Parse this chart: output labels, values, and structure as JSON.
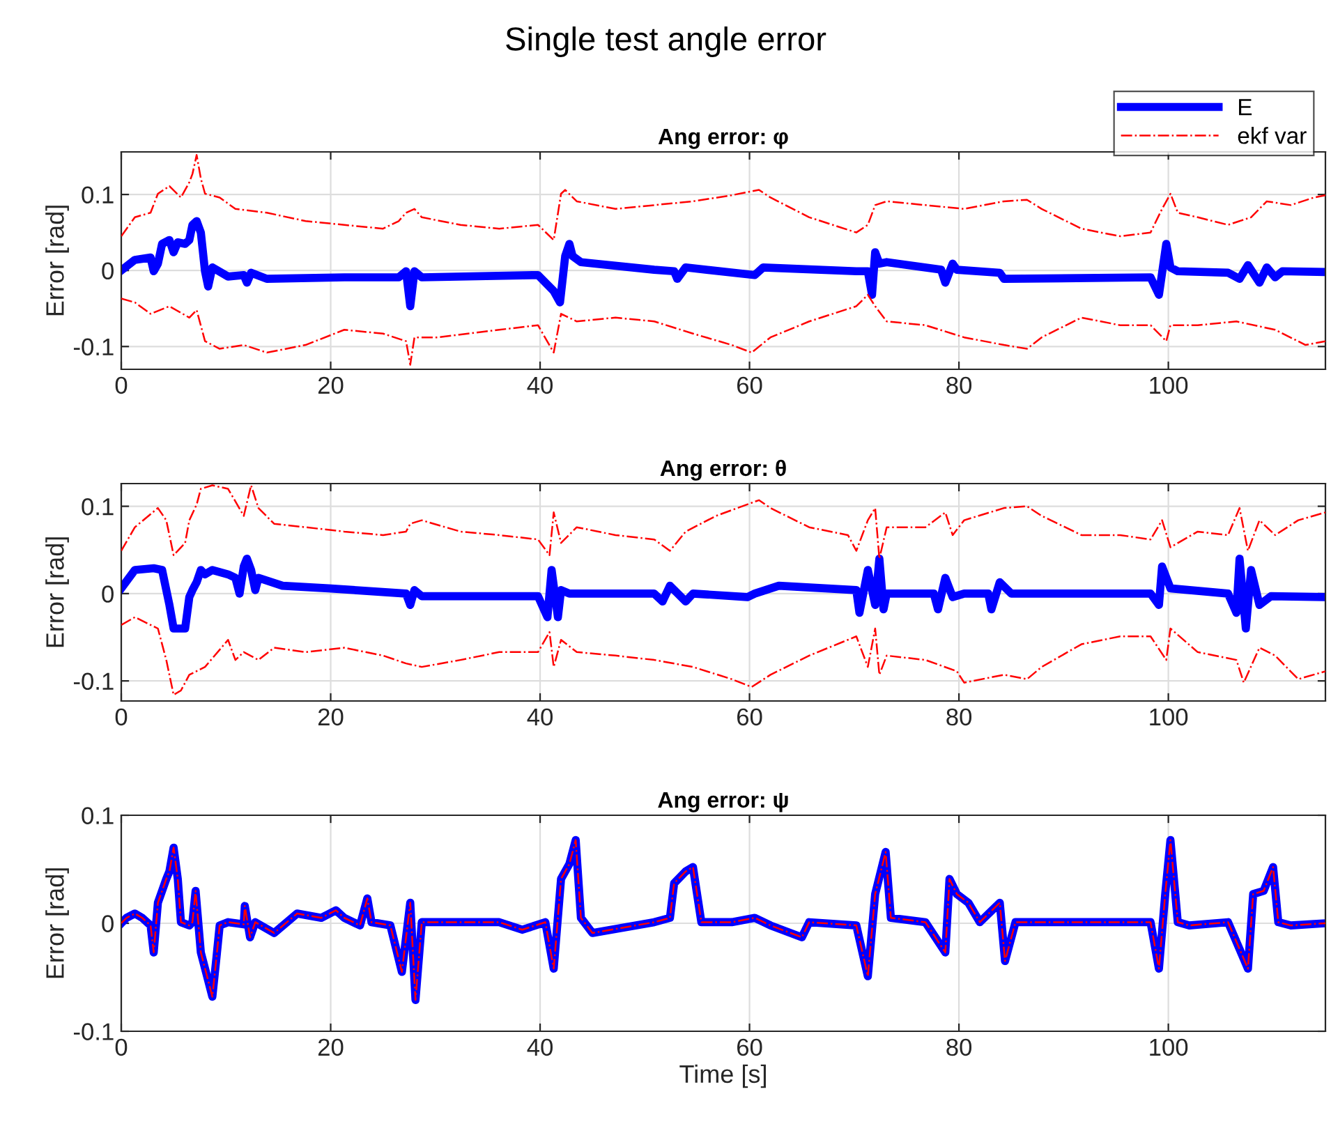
{
  "chart_data": [
    {
      "type": "line",
      "title": "Single test angle error",
      "subtitle": "Ang error: φ",
      "ylabel": "Error [rad]",
      "xlim": [
        0,
        115
      ],
      "xticks": [
        0,
        20,
        40,
        60,
        80,
        100
      ],
      "ylim": [
        -0.13,
        0.156
      ],
      "yticks": [
        -0.1,
        0,
        0.1
      ],
      "grid": true,
      "legend": "top right",
      "series": [
        {
          "name": "E",
          "color": "#0000ff",
          "line_style": "solid",
          "x": [
            0,
            1.3,
            2.8,
            3.1,
            3.5,
            3.9,
            4.6,
            5.0,
            5.4,
            6.1,
            6.5,
            6.8,
            7.2,
            7.6,
            8.0,
            8.3,
            8.7,
            10.2,
            11.7,
            12.0,
            12.4,
            13.9,
            21.3,
            26.5,
            27.2,
            27.6,
            28.0,
            28.7,
            39.8,
            41.3,
            41.9,
            42.4,
            42.8,
            43.1,
            43.9,
            50.9,
            52.8,
            53.1,
            53.9,
            60.5,
            61.3,
            70.2,
            71.3,
            71.7,
            72.0,
            72.4,
            73.1,
            78.3,
            78.7,
            79.4,
            79.8,
            83.9,
            84.3,
            98.3,
            99.1,
            99.8,
            100.2,
            100.9,
            105.7,
            106.8,
            107.6,
            108.7,
            109.4,
            110.2,
            110.9,
            115
          ],
          "values": [
            0,
            0.014,
            0.017,
            -0.001,
            0.009,
            0.035,
            0.04,
            0.024,
            0.037,
            0.035,
            0.04,
            0.06,
            0.065,
            0.05,
            -0.001,
            -0.021,
            0.004,
            -0.008,
            -0.006,
            -0.016,
            -0.003,
            -0.011,
            -0.009,
            -0.009,
            -0.001,
            -0.047,
            -0.001,
            -0.009,
            -0.006,
            -0.027,
            -0.042,
            0.019,
            0.035,
            0.019,
            0.011,
            0.001,
            -0.001,
            -0.011,
            0.004,
            -0.006,
            0.004,
            -0.001,
            -0.001,
            -0.032,
            0.024,
            0.009,
            0.011,
            0.001,
            -0.016,
            0.009,
            0.001,
            -0.003,
            -0.011,
            -0.009,
            -0.032,
            0.035,
            0.004,
            -0.001,
            -0.003,
            -0.011,
            0.007,
            -0.016,
            0.004,
            -0.009,
            -0.001,
            -0.002
          ]
        },
        {
          "name": "ekf var",
          "color": "#ff0000",
          "line_style": "dashdot",
          "x": [
            0,
            1.3,
            2.8,
            3.5,
            4.6,
            5.7,
            6.5,
            6.8,
            7.2,
            7.6,
            8.0,
            9.4,
            10.9,
            13.9,
            17.6,
            21.3,
            25.0,
            26.5,
            27.2,
            28.0,
            28.7,
            32.4,
            36.1,
            39.8,
            41.3,
            42.0,
            42.4,
            43.5,
            47.2,
            50.9,
            54.6,
            58.3,
            60.9,
            62.0,
            65.7,
            70.2,
            71.3,
            72.0,
            73.1,
            76.8,
            80.5,
            84.3,
            86.5,
            87.9,
            91.7,
            95.4,
            98.3,
            99.4,
            100.2,
            100.9,
            102.8,
            105.7,
            107.9,
            109.4,
            111.7,
            113.9,
            115
          ],
          "values": [
            0.045,
            0.07,
            0.076,
            0.101,
            0.111,
            0.096,
            0.116,
            0.127,
            0.152,
            0.121,
            0.101,
            0.096,
            0.081,
            0.076,
            0.065,
            0.06,
            0.055,
            0.065,
            0.076,
            0.081,
            0.07,
            0.06,
            0.055,
            0.06,
            0.04,
            0.101,
            0.106,
            0.091,
            0.081,
            0.086,
            0.091,
            0.099,
            0.106,
            0.096,
            0.07,
            0.05,
            0.06,
            0.086,
            0.091,
            0.086,
            0.081,
            0.091,
            0.093,
            0.081,
            0.055,
            0.045,
            0.05,
            0.081,
            0.101,
            0.076,
            0.07,
            0.06,
            0.07,
            0.091,
            0.086,
            0.096,
            0.099
          ]
        },
        {
          "color": "#ff0000",
          "line_style": "dashdot",
          "x": [
            0,
            1.3,
            2.8,
            4.6,
            6.5,
            7.2,
            8.0,
            9.4,
            11.7,
            13.9,
            17.6,
            21.3,
            25.0,
            27.2,
            27.6,
            28.0,
            30.2,
            36.1,
            39.8,
            41.3,
            42.0,
            43.5,
            47.2,
            50.9,
            54.6,
            58.3,
            60.2,
            62.0,
            65.7,
            70.2,
            71.3,
            72.0,
            73.1,
            76.8,
            80.5,
            84.3,
            86.5,
            87.9,
            91.7,
            95.4,
            98.3,
            99.8,
            100.2,
            102.8,
            106.5,
            110.2,
            113.1,
            115
          ],
          "values": [
            -0.037,
            -0.042,
            -0.057,
            -0.047,
            -0.062,
            -0.052,
            -0.093,
            -0.103,
            -0.098,
            -0.108,
            -0.098,
            -0.078,
            -0.083,
            -0.093,
            -0.124,
            -0.088,
            -0.088,
            -0.078,
            -0.072,
            -0.108,
            -0.057,
            -0.067,
            -0.062,
            -0.067,
            -0.083,
            -0.098,
            -0.108,
            -0.088,
            -0.067,
            -0.047,
            -0.032,
            -0.047,
            -0.067,
            -0.072,
            -0.088,
            -0.098,
            -0.103,
            -0.088,
            -0.062,
            -0.072,
            -0.072,
            -0.093,
            -0.072,
            -0.072,
            -0.067,
            -0.078,
            -0.098,
            -0.093
          ]
        }
      ]
    },
    {
      "type": "line",
      "subtitle": "Ang error: θ",
      "ylabel": "Error [rad]",
      "xlim": [
        0,
        115
      ],
      "xticks": [
        0,
        20,
        40,
        60,
        80,
        100
      ],
      "ylim": [
        -0.123,
        0.126
      ],
      "yticks": [
        -0.1,
        0,
        0.1
      ],
      "grid": true,
      "series": [
        {
          "color": "#0000ff",
          "line_style": "solid",
          "x": [
            0,
            1.3,
            3.1,
            3.9,
            4.6,
            5.0,
            6.1,
            6.5,
            6.8,
            7.2,
            7.6,
            8.0,
            8.7,
            10.2,
            10.9,
            11.3,
            11.7,
            12.0,
            12.4,
            12.8,
            13.1,
            15.4,
            19.8,
            27.2,
            27.6,
            28.0,
            28.7,
            39.8,
            40.7,
            41.1,
            41.7,
            42.0,
            42.8,
            50.9,
            51.7,
            52.4,
            53.9,
            54.6,
            59.8,
            60.5,
            62.8,
            70.2,
            70.5,
            71.3,
            72.0,
            72.4,
            72.8,
            73.1,
            77.6,
            78.0,
            78.7,
            79.4,
            80.5,
            82.8,
            83.1,
            83.9,
            85.0,
            98.3,
            99.1,
            99.4,
            100.2,
            105.7,
            106.5,
            106.8,
            107.4,
            107.9,
            108.7,
            109.8,
            115
          ],
          "values": [
            0.006,
            0.027,
            0.029,
            0.027,
            -0.013,
            -0.04,
            -0.04,
            -0.004,
            0.004,
            0.013,
            0.027,
            0.022,
            0.027,
            0.022,
            0.018,
            0,
            0.031,
            0.04,
            0.027,
            0.004,
            0.018,
            0.009,
            0.006,
            0,
            -0.013,
            0.004,
            -0.003,
            -0.003,
            -0.027,
            0.027,
            -0.027,
            0.004,
            0,
            0,
            -0.009,
            0.009,
            -0.009,
            0,
            -0.004,
            0,
            0.009,
            0.004,
            -0.022,
            0.027,
            -0.013,
            0.04,
            -0.018,
            0,
            0,
            -0.018,
            0.018,
            -0.004,
            0,
            0,
            -0.018,
            0.013,
            0,
            0,
            -0.013,
            0.031,
            0.006,
            0,
            -0.022,
            0.04,
            -0.04,
            0.027,
            -0.013,
            -0.003,
            -0.004
          ]
        },
        {
          "color": "#ff0000",
          "line_style": "dashdot",
          "x": [
            0,
            1.3,
            3.5,
            4.3,
            5.0,
            6.1,
            6.5,
            7.2,
            7.6,
            8.7,
            10.2,
            11.7,
            12.4,
            13.1,
            14.6,
            17.6,
            21.3,
            25.0,
            27.2,
            27.6,
            28.7,
            32.4,
            36.1,
            39.8,
            40.9,
            41.3,
            42.0,
            43.5,
            47.2,
            50.9,
            52.4,
            53.9,
            56.8,
            60.9,
            62.0,
            65.7,
            69.4,
            70.2,
            71.3,
            72.0,
            72.4,
            73.1,
            76.8,
            78.7,
            79.4,
            80.5,
            84.3,
            86.5,
            87.9,
            91.7,
            95.4,
            98.3,
            99.4,
            100.2,
            102.8,
            105.7,
            106.8,
            107.6,
            108.7,
            110.2,
            112.4,
            115
          ],
          "values": [
            0.049,
            0.076,
            0.098,
            0.084,
            0.044,
            0.058,
            0.084,
            0.102,
            0.12,
            0.124,
            0.12,
            0.089,
            0.124,
            0.098,
            0.08,
            0.076,
            0.071,
            0.067,
            0.071,
            0.08,
            0.084,
            0.071,
            0.067,
            0.062,
            0.044,
            0.093,
            0.058,
            0.076,
            0.067,
            0.062,
            0.049,
            0.071,
            0.089,
            0.107,
            0.098,
            0.076,
            0.067,
            0.049,
            0.084,
            0.098,
            0.04,
            0.076,
            0.076,
            0.093,
            0.067,
            0.084,
            0.098,
            0.1,
            0.089,
            0.067,
            0.067,
            0.062,
            0.084,
            0.053,
            0.071,
            0.067,
            0.098,
            0.049,
            0.084,
            0.067,
            0.084,
            0.093
          ]
        },
        {
          "color": "#ff0000",
          "line_style": "dashdot",
          "x": [
            0,
            1.3,
            3.5,
            4.3,
            5.0,
            5.7,
            6.5,
            8.0,
            10.2,
            10.9,
            11.7,
            13.1,
            14.6,
            17.6,
            21.3,
            25.0,
            27.2,
            28.7,
            32.4,
            36.1,
            39.8,
            40.9,
            41.3,
            42.0,
            43.5,
            47.2,
            50.9,
            54.6,
            58.3,
            60.2,
            62.0,
            65.7,
            70.2,
            71.3,
            72.0,
            72.4,
            73.1,
            76.8,
            79.8,
            80.5,
            84.3,
            86.5,
            87.9,
            91.7,
            95.4,
            98.3,
            99.8,
            100.2,
            102.8,
            106.5,
            107.2,
            108.7,
            110.2,
            112.4,
            115
          ],
          "values": [
            -0.036,
            -0.027,
            -0.04,
            -0.076,
            -0.116,
            -0.111,
            -0.093,
            -0.084,
            -0.053,
            -0.076,
            -0.067,
            -0.076,
            -0.062,
            -0.067,
            -0.062,
            -0.071,
            -0.08,
            -0.084,
            -0.076,
            -0.067,
            -0.067,
            -0.044,
            -0.084,
            -0.053,
            -0.067,
            -0.071,
            -0.076,
            -0.084,
            -0.098,
            -0.107,
            -0.093,
            -0.071,
            -0.049,
            -0.084,
            -0.04,
            -0.093,
            -0.071,
            -0.076,
            -0.089,
            -0.102,
            -0.093,
            -0.098,
            -0.084,
            -0.058,
            -0.049,
            -0.049,
            -0.076,
            -0.04,
            -0.067,
            -0.076,
            -0.102,
            -0.062,
            -0.071,
            -0.098,
            -0.089
          ]
        }
      ]
    },
    {
      "type": "line",
      "subtitle": "Ang error: ψ",
      "xlabel": "Time [s]",
      "ylabel": "Error [rad]",
      "xlim": [
        0,
        115
      ],
      "xticks": [
        0,
        20,
        40,
        60,
        80,
        100
      ],
      "ylim": [
        -0.1,
        0.1
      ],
      "yticks": [
        -0.1,
        0,
        0.1
      ],
      "grid": true,
      "x": [
        0,
        0.5,
        1.3,
        2.0,
        2.8,
        3.1,
        3.5,
        4.3,
        4.6,
        5.0,
        5.4,
        5.7,
        6.5,
        6.8,
        7.1,
        7.6,
        8.3,
        8.7,
        9.1,
        9.4,
        10.2,
        11.7,
        11.8,
        12.3,
        12.8,
        14.6,
        16.8,
        19.1,
        20.5,
        21.3,
        22.8,
        23.5,
        23.9,
        25.7,
        26.8,
        27.6,
        28.1,
        28.7,
        32.4,
        36.1,
        38.3,
        40.5,
        41.3,
        42.0,
        42.8,
        43.4,
        43.9,
        45.0,
        50.9,
        52.4,
        52.8,
        53.9,
        54.6,
        55.4,
        58.3,
        60.5,
        62.0,
        65.0,
        65.7,
        70.2,
        71.3,
        72.0,
        73.0,
        73.5,
        76.8,
        78.7,
        79.1,
        79.8,
        80.9,
        82.0,
        83.9,
        84.4,
        85.4,
        91.7,
        98.3,
        99.1,
        99.7,
        100.2,
        100.9,
        102.0,
        105.7,
        107.6,
        108.1,
        109.1,
        110.0,
        110.5,
        111.7,
        115
      ],
      "series": [
        {
          "color": "#0000ff",
          "line_style": "solid",
          "values": [
            0,
            0.005,
            0.009,
            0.005,
            -0.002,
            -0.027,
            0.019,
            0.041,
            0.048,
            0.07,
            0.041,
            0.001,
            -0.002,
            0.001,
            0.03,
            -0.027,
            -0.053,
            -0.068,
            -0.031,
            -0.002,
            0.001,
            -0.001,
            0.016,
            -0.013,
            0.001,
            -0.009,
            0.009,
            0.005,
            0.012,
            0.005,
            -0.002,
            0.023,
            0.001,
            -0.002,
            -0.045,
            0.019,
            -0.071,
            0.001,
            0.001,
            0.001,
            -0.006,
            0.001,
            -0.042,
            0.041,
            0.055,
            0.077,
            0.005,
            -0.009,
            0.001,
            0.005,
            0.037,
            0.048,
            0.052,
            0.001,
            0.001,
            0.005,
            -0.002,
            -0.013,
            0.001,
            -0.002,
            -0.049,
            0.027,
            0.066,
            0.005,
            0.001,
            -0.027,
            0.041,
            0.027,
            0.019,
            0.001,
            0.019,
            -0.035,
            0.001,
            0.001,
            0.001,
            -0.042,
            0.027,
            0.077,
            0.001,
            -0.002,
            0.001,
            -0.042,
            0.027,
            0.03,
            0.052,
            0.001,
            -0.002,
            0
          ]
        },
        {
          "color": "#ff0000",
          "line_style": "dashdot",
          "values": [
            0,
            0.005,
            0.009,
            0.005,
            -0.002,
            -0.027,
            0.019,
            0.041,
            0.048,
            0.07,
            0.041,
            0.001,
            -0.002,
            0.001,
            0.03,
            -0.027,
            -0.053,
            -0.068,
            -0.031,
            -0.002,
            0.001,
            -0.001,
            0.016,
            -0.013,
            0.001,
            -0.009,
            0.009,
            0.005,
            0.012,
            0.005,
            -0.002,
            0.023,
            0.001,
            -0.002,
            -0.045,
            0.019,
            -0.071,
            0.001,
            0.001,
            0.001,
            -0.006,
            0.001,
            -0.042,
            0.041,
            0.055,
            0.077,
            0.005,
            -0.009,
            0.001,
            0.005,
            0.037,
            0.048,
            0.052,
            0.001,
            0.001,
            0.005,
            -0.002,
            -0.013,
            0.001,
            -0.002,
            -0.049,
            0.027,
            0.066,
            0.005,
            0.001,
            -0.027,
            0.041,
            0.027,
            0.019,
            0.001,
            0.019,
            -0.035,
            0.001,
            0.001,
            0.001,
            -0.042,
            0.027,
            0.077,
            0.001,
            -0.002,
            0.001,
            -0.042,
            0.027,
            0.03,
            0.052,
            0.001,
            -0.002,
            0
          ]
        }
      ]
    }
  ]
}
